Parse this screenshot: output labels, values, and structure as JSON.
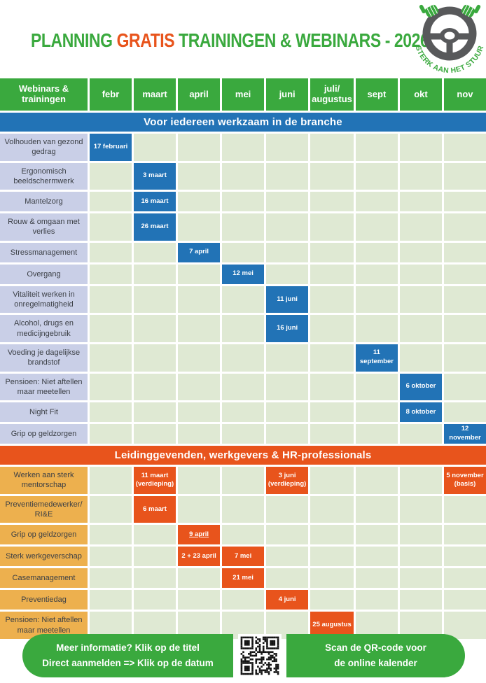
{
  "title": {
    "part1": "PLANNING",
    "part2": "GRATIS",
    "part3": "TRAININGEN & WEBINARS - 2026"
  },
  "logo": {
    "arc_text": "STERK AAN HET STUUR"
  },
  "corner_header": "Webinars & trainingen",
  "months": [
    "febr",
    "maart",
    "april",
    "mei",
    "juni",
    "juli/augustus",
    "sept",
    "okt",
    "nov"
  ],
  "colors": {
    "green": "#3aa93e",
    "orange": "#e8541c",
    "blue": "#2273b6",
    "lavender": "#c9cfe7",
    "cellgreen": "#dfe9d3",
    "amber": "#edb04e",
    "wheel": "#58595b",
    "labeltext": "#3b3f45"
  },
  "sections": [
    {
      "banner": "Voor iedereen werkzaam in de branche",
      "theme": "blue",
      "rows": [
        {
          "label": "Volhouden van gezond gedrag",
          "events": [
            {
              "month": 0,
              "date": "17 februari"
            }
          ]
        },
        {
          "label": "Ergonomisch beeldschermwerk",
          "events": [
            {
              "month": 1,
              "date": "3 maart"
            }
          ]
        },
        {
          "label": "Mantelzorg",
          "events": [
            {
              "month": 1,
              "date": "16 maart"
            }
          ]
        },
        {
          "label": "Rouw & omgaan met verlies",
          "events": [
            {
              "month": 1,
              "date": "26 maart"
            }
          ]
        },
        {
          "label": "Stressmanagement",
          "events": [
            {
              "month": 2,
              "date": "7 april"
            }
          ]
        },
        {
          "label": "Overgang",
          "events": [
            {
              "month": 3,
              "date": "12 mei"
            }
          ]
        },
        {
          "label": "Vitaliteit werken in onregelmatigheid",
          "events": [
            {
              "month": 4,
              "date": "11 juni"
            }
          ]
        },
        {
          "label": "Alcohol, drugs en medicijngebruik",
          "events": [
            {
              "month": 4,
              "date": "16 juni"
            }
          ]
        },
        {
          "label": "Voeding je dagelijkse brandstof",
          "events": [
            {
              "month": 6,
              "date": "11 september"
            }
          ]
        },
        {
          "label": "Pensioen: Niet aftellen maar meetellen",
          "events": [
            {
              "month": 7,
              "date": "6 oktober"
            }
          ]
        },
        {
          "label": "Night Fit",
          "events": [
            {
              "month": 7,
              "date": "8 oktober"
            }
          ]
        },
        {
          "label": "Grip op geldzorgen",
          "events": [
            {
              "month": 8,
              "date": "12 november"
            }
          ]
        }
      ]
    },
    {
      "banner": "Leidinggevenden, werkgevers & HR-professionals",
      "theme": "orange",
      "rows": [
        {
          "label": "Werken aan sterk mentorschap",
          "events": [
            {
              "month": 1,
              "date": "11 maart",
              "note": "(verdieping)"
            },
            {
              "month": 4,
              "date": "3 juni",
              "note": "(verdieping)"
            },
            {
              "month": 8,
              "date": "5 november",
              "note": "(basis)"
            }
          ]
        },
        {
          "label": "Preventiemedewerker/ RI&E",
          "events": [
            {
              "month": 1,
              "date": "6 maart"
            }
          ]
        },
        {
          "label": "Grip op geldzorgen",
          "events": [
            {
              "month": 2,
              "date": "9 april",
              "underline": true
            }
          ]
        },
        {
          "label": "Sterk werkgeverschap",
          "events": [
            {
              "month": 2,
              "date": "2 + 23 april"
            },
            {
              "month": 3,
              "date": "7 mei"
            }
          ]
        },
        {
          "label": "Casemanagement",
          "events": [
            {
              "month": 3,
              "date": "21 mei"
            }
          ]
        },
        {
          "label": "Preventiedag",
          "events": [
            {
              "month": 4,
              "date": "4 juni"
            }
          ]
        },
        {
          "label": "Pensioen: Niet aftellen maar meetellen",
          "events": [
            {
              "month": 5,
              "date": "25 augustus"
            }
          ]
        }
      ]
    }
  ],
  "footer": {
    "info_line1": "Meer informatie? Klik op de titel",
    "info_line2": "Direct aanmelden => Klik op de datum",
    "qr_line1": "Scan de QR-code voor",
    "qr_line2": "de online kalender"
  }
}
